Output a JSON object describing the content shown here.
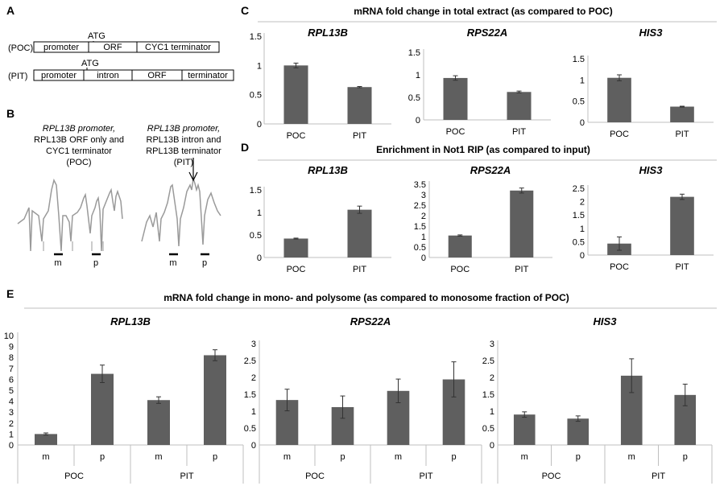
{
  "panels": {
    "A": {
      "label": "A",
      "poc": {
        "tag": "(POC)",
        "atg": "ATG",
        "segments": [
          "promoter",
          "ORF",
          "CYC1 terminator"
        ]
      },
      "pit": {
        "tag": "(PIT)",
        "atg": "ATG",
        "segments": [
          "promoter",
          "intron",
          "ORF",
          "terminator"
        ]
      }
    },
    "B": {
      "label": "B",
      "poc_caption": [
        "RPL13B promoter,",
        "RPL13B ORF only and",
        "CYC1 terminator",
        "(POC)"
      ],
      "pit_caption": [
        "RPL13B promoter,",
        "RPL13B intron and",
        "RPL13B terminator",
        "(PIT)"
      ],
      "m_label": "m",
      "p_label": "p"
    },
    "C": {
      "label": "C",
      "title": "mRNA fold change in total extract (as compared to POC)"
    },
    "D": {
      "label": "D",
      "title": "Enrichment in Not1 RIP (as compared to input)"
    },
    "E": {
      "label": "E",
      "title": "mRNA fold change in mono- and polysome (as compared to monosome fraction of POC)"
    }
  },
  "colors": {
    "bar": "#5f5f5f",
    "axis": "#bfbfbf",
    "text": "#000000",
    "profile": "#9a9a9a"
  },
  "chart_data": [
    {
      "id": "C1",
      "panel": "C",
      "type": "bar",
      "title": "RPL13B",
      "categories": [
        "POC",
        "PIT"
      ],
      "values": [
        1.0,
        0.63
      ],
      "errors": [
        0.04,
        0.01
      ],
      "ylim": [
        0,
        1.5
      ],
      "yticks": [
        "0",
        "0.5",
        "1",
        "1.5"
      ]
    },
    {
      "id": "C2",
      "panel": "C",
      "type": "bar",
      "title": "RPS22A",
      "categories": [
        "POC",
        "PIT"
      ],
      "values": [
        0.93,
        0.62
      ],
      "errors": [
        0.05,
        0.02
      ],
      "ylim": [
        0,
        1.5
      ],
      "yticks": [
        "0",
        "0.5",
        "1",
        "1.5"
      ]
    },
    {
      "id": "C3",
      "panel": "C",
      "type": "bar",
      "title": "HIS3",
      "categories": [
        "POC",
        "PIT"
      ],
      "values": [
        1.05,
        0.37
      ],
      "errors": [
        0.07,
        0.01
      ],
      "ylim": [
        0,
        1.5
      ],
      "yticks": [
        "0",
        "0.5",
        "1",
        "1.5"
      ]
    },
    {
      "id": "D1",
      "panel": "D",
      "type": "bar",
      "title": "RPL13B",
      "categories": [
        "POC",
        "PIT"
      ],
      "values": [
        0.42,
        1.06
      ],
      "errors": [
        0.01,
        0.08
      ],
      "ylim": [
        0,
        1.5
      ],
      "yticks": [
        "0",
        "0.5",
        "1",
        "1.5"
      ]
    },
    {
      "id": "D2",
      "panel": "D",
      "type": "bar",
      "title": "RPS22A",
      "categories": [
        "POC",
        "PIT"
      ],
      "values": [
        1.05,
        3.2
      ],
      "errors": [
        0.03,
        0.12
      ],
      "ylim": [
        0,
        3.5
      ],
      "yticks": [
        "0",
        "0.5",
        "1",
        "1.5",
        "2",
        "2.5",
        "3",
        "3.5"
      ]
    },
    {
      "id": "D3",
      "panel": "D",
      "type": "bar",
      "title": "HIS3",
      "categories": [
        "POC",
        "PIT"
      ],
      "values": [
        0.43,
        2.18
      ],
      "errors": [
        0.25,
        0.1
      ],
      "ylim": [
        0,
        2.5
      ],
      "yticks": [
        "0",
        "0.5",
        "1",
        "1.5",
        "2",
        "2.5"
      ]
    },
    {
      "id": "E1",
      "panel": "E",
      "type": "bar",
      "title": "RPL13B",
      "categories": [
        "m",
        "p",
        "m",
        "p"
      ],
      "groups": [
        "POC",
        "PIT"
      ],
      "values": [
        1.0,
        6.5,
        4.1,
        8.2
      ],
      "errors": [
        0.1,
        0.8,
        0.3,
        0.5
      ],
      "ylim": [
        0,
        10
      ],
      "yticks": [
        "0",
        "1",
        "2",
        "3",
        "4",
        "5",
        "6",
        "7",
        "8",
        "9",
        "10"
      ]
    },
    {
      "id": "E2",
      "panel": "E",
      "type": "bar",
      "title": "RPS22A",
      "categories": [
        "m",
        "p",
        "m",
        "p"
      ],
      "groups": [
        "POC",
        "PIT"
      ],
      "values": [
        1.33,
        1.12,
        1.6,
        1.94
      ],
      "errors": [
        0.32,
        0.33,
        0.35,
        0.52
      ],
      "ylim": [
        0,
        3
      ],
      "yticks": [
        "0",
        "0.5",
        "1",
        "1.5",
        "2",
        "2.5",
        "3"
      ]
    },
    {
      "id": "E3",
      "panel": "E",
      "type": "bar",
      "title": "HIS3",
      "categories": [
        "m",
        "p",
        "m",
        "p"
      ],
      "groups": [
        "POC",
        "PIT"
      ],
      "values": [
        0.9,
        0.78,
        2.05,
        1.48
      ],
      "errors": [
        0.08,
        0.08,
        0.5,
        0.32
      ],
      "ylim": [
        0,
        3
      ],
      "yticks": [
        "0",
        "0.5",
        "1",
        "1.5",
        "2",
        "2.5",
        "3"
      ]
    }
  ]
}
